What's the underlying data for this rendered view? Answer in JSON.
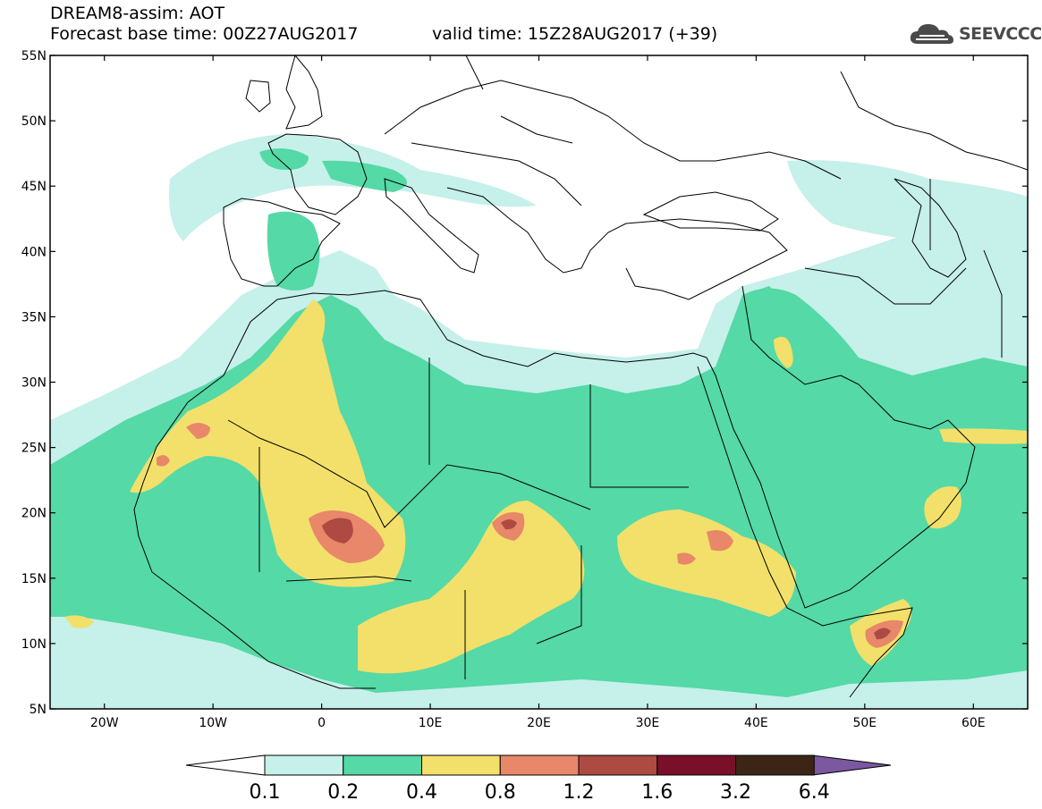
{
  "title": {
    "line1": "DREAM8-assim: AOT",
    "line2": "Forecast base time: 00Z27AUG2017",
    "valid": "valid time: 15Z28AUG2017 (+39)"
  },
  "logo": {
    "text": "SEEVCCC",
    "icon": "cloud-icon"
  },
  "map": {
    "lat_labels": [
      "55N",
      "50N",
      "45N",
      "40N",
      "35N",
      "30N",
      "25N",
      "20N",
      "15N",
      "10N",
      "5N"
    ],
    "lon_labels": [
      "20W",
      "10W",
      "0",
      "10E",
      "20E",
      "30E",
      "40E",
      "50E",
      "60E"
    ],
    "extent": {
      "lon_min": -25,
      "lon_max": 65,
      "lat_min": 5,
      "lat_max": 55
    }
  },
  "colorbar": {
    "levels": [
      "0.1",
      "0.2",
      "0.4",
      "0.8",
      "1.2",
      "1.6",
      "3.2",
      "6.4"
    ],
    "colors": [
      "#c6f0ea",
      "#55d9a6",
      "#f2e06a",
      "#e8876a",
      "#ad4a42",
      "#7a0f2a",
      "#3d2515",
      "#7b58a0"
    ]
  }
}
